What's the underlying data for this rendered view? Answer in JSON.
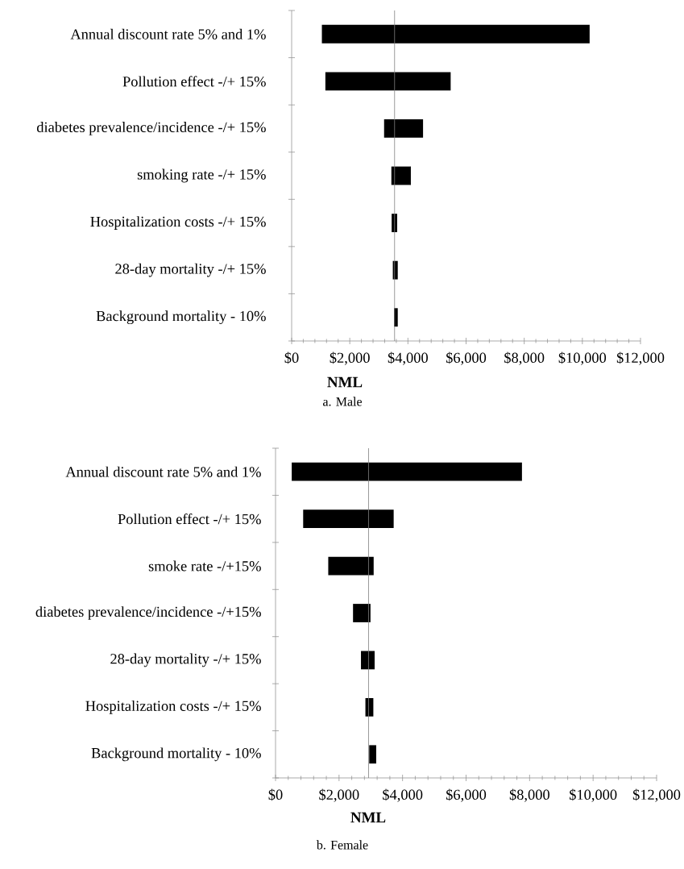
{
  "chart_data": [
    {
      "type": "bar",
      "orientation": "horizontal",
      "categories": [
        "Annual discount rate 5% and 1%",
        "Pollution effect -/+ 15%",
        "diabetes prevalence/incidence -/+ 15%",
        "smoking rate -/+ 15%",
        "Hospitalization costs -/+ 15%",
        "28-day mortality -/+ 15%",
        "Background mortality - 10%"
      ],
      "base": [
        1040,
        1160,
        3180,
        3430,
        3440,
        3480,
        3520
      ],
      "values": [
        9210,
        4310,
        1340,
        670,
        190,
        170,
        130
      ],
      "color": "#000000",
      "xlim": [
        0,
        12000
      ],
      "xticks": [
        {
          "value": 0,
          "label": "$0"
        },
        {
          "value": 2000,
          "label": "$2,000"
        },
        {
          "value": 4000,
          "label": "$4,000"
        },
        {
          "value": 6000,
          "label": "$6,000"
        },
        {
          "value": 8000,
          "label": "$8,000"
        },
        {
          "value": 10000,
          "label": "$10,000"
        },
        {
          "value": 12000,
          "label": "$12,000"
        }
      ],
      "xlabel": "NML",
      "ref_lines": [
        {
          "axis": "x",
          "value": 3540,
          "color": "#808080"
        }
      ],
      "annotations": [
        "a. Male"
      ]
    },
    {
      "type": "bar",
      "orientation": "horizontal",
      "categories": [
        "Annual discount rate 5% and 1%",
        "Pollution effect -/+ 15%",
        "smoke rate -/+15%",
        "diabetes prevalence/incidence -/+15%",
        "28-day mortality -/+ 15%",
        "Hospitalization costs -/+ 15%",
        "Background mortality - 10%"
      ],
      "base": [
        510,
        870,
        1660,
        2440,
        2690,
        2830,
        2950
      ],
      "values": [
        7250,
        2850,
        1430,
        550,
        430,
        250,
        220
      ],
      "color": "#000000",
      "xlim": [
        0,
        12000
      ],
      "xticks": [
        {
          "value": 0,
          "label": "$0"
        },
        {
          "value": 2000,
          "label": "$2,000"
        },
        {
          "value": 4000,
          "label": "$4,000"
        },
        {
          "value": 6000,
          "label": "$6,000"
        },
        {
          "value": 8000,
          "label": "$8,000"
        },
        {
          "value": 10000,
          "label": "$10,000"
        },
        {
          "value": 12000,
          "label": "$12,000"
        }
      ],
      "xlabel": "NML",
      "ref_lines": [
        {
          "axis": "x",
          "value": 2930,
          "color": "#808080"
        }
      ],
      "annotations": [
        "b. Female"
      ]
    }
  ]
}
